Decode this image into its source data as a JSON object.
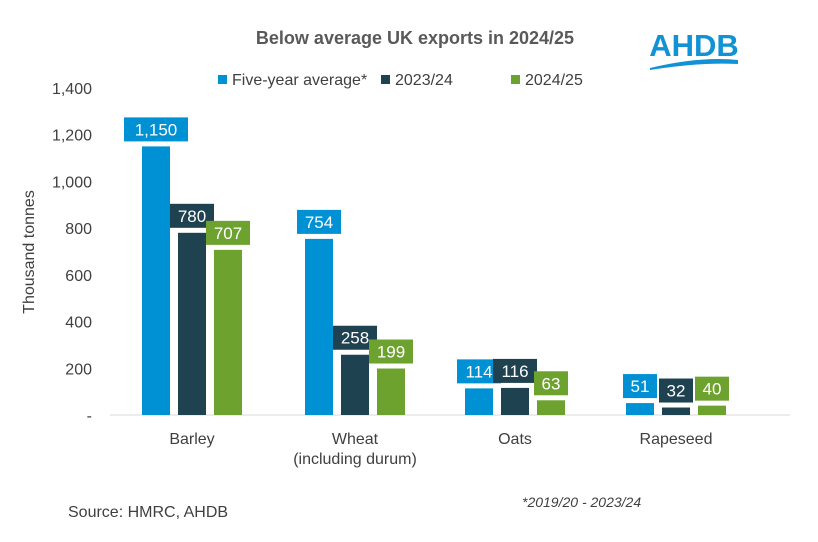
{
  "logo_text": "AHDB",
  "source": "Source: HMRC, AHDB",
  "footnote": "*2019/20 - 2023/24",
  "colors": {
    "five_year": "#0090D4",
    "y2023": "#1F4251",
    "y2024": "#6EA22F",
    "logo": "#1192D5"
  },
  "chart_data": {
    "type": "bar",
    "title": "Below average UK exports in 2024/25",
    "ylabel": "Thousand tonnes",
    "xlabel": "",
    "ylim": [
      0,
      1400
    ],
    "yticks": [
      0,
      200,
      400,
      600,
      800,
      1000,
      1200,
      1400
    ],
    "ytick_labels": [
      "-",
      "200",
      "400",
      "600",
      "800",
      "1,000",
      "1,200",
      "1,400"
    ],
    "categories": [
      "Barley",
      "Wheat (including durum)",
      "Oats",
      "Rapeseed"
    ],
    "category_lines": [
      [
        "Barley"
      ],
      [
        "Wheat",
        "(including durum)"
      ],
      [
        "Oats"
      ],
      [
        "Rapeseed"
      ]
    ],
    "legend_position": "top",
    "grid": false,
    "series": [
      {
        "name": "Five-year average*",
        "values": [
          1150,
          754,
          114,
          51
        ],
        "labels": [
          "1,150",
          "754",
          "114",
          "51"
        ]
      },
      {
        "name": "2023/24",
        "values": [
          780,
          258,
          116,
          32
        ],
        "labels": [
          "780",
          "258",
          "116",
          "32"
        ]
      },
      {
        "name": "2024/25",
        "values": [
          707,
          199,
          63,
          40
        ],
        "labels": [
          "707",
          "199",
          "63",
          "40"
        ]
      }
    ]
  }
}
